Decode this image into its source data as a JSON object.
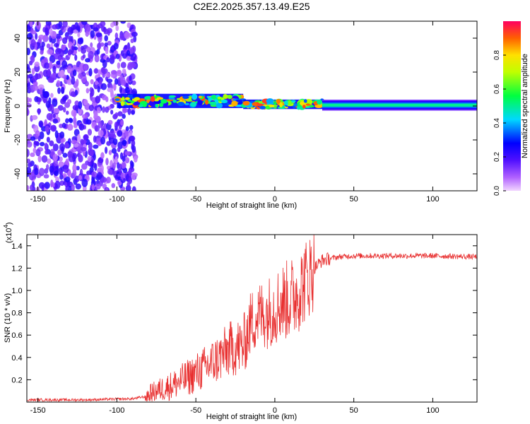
{
  "title": "C2E2.2025.357.13.49.E25",
  "chart_data": [
    {
      "id": "spectrogram",
      "type": "heatmap",
      "xlabel": "Height of straight line (km)",
      "ylabel": "Frequency (Hz)",
      "xlim": [
        -157,
        128
      ],
      "ylim": [
        -50,
        50
      ],
      "xticks": [
        -150,
        -100,
        -50,
        0,
        50,
        100
      ],
      "yticks": [
        -40,
        -20,
        0,
        20,
        40
      ],
      "xtick_labels": [
        "-150",
        "-100",
        "-50",
        "0",
        "50",
        "100"
      ],
      "ytick_labels": [
        "-40",
        "-20",
        "0",
        "20",
        "40"
      ],
      "colorbar": {
        "label": "Normalized spectral amplitude",
        "range": [
          0,
          1
        ],
        "ticks": [
          0.0,
          0.2,
          0.4,
          0.6,
          0.8
        ],
        "tick_labels": [
          "0.0",
          "0.2",
          "0.4",
          "0.6",
          "0.8"
        ]
      },
      "regions": [
        {
          "name": "noise",
          "x": [
            -157,
            -88
          ],
          "freq_spread_hz": 50,
          "amplitude": [
            0.05,
            0.25
          ]
        },
        {
          "name": "scattered-band",
          "x": [
            -100,
            -20
          ],
          "center_hz": 3,
          "width_hz": 6,
          "amplitude": [
            0.2,
            0.95
          ]
        },
        {
          "name": "transition-band",
          "x": [
            -20,
            30
          ],
          "center_hz": 1,
          "width_hz": 4,
          "amplitude": [
            0.3,
            0.95
          ]
        },
        {
          "name": "steady-band",
          "x": [
            30,
            128
          ],
          "center_hz": 0.5,
          "width_hz": 3,
          "amplitude": [
            0.5,
            0.6
          ]
        }
      ]
    },
    {
      "id": "snr",
      "type": "line",
      "xlabel": "Height of straight line (km)",
      "ylabel": "SNR (10 * v/v)",
      "multiplier_label": "(x10",
      "multiplier_exp": "4",
      "multiplier_close": ")",
      "xlim": [
        -157,
        128
      ],
      "ylim": [
        0,
        1.5
      ],
      "xticks": [
        -150,
        -100,
        -50,
        0,
        50,
        100
      ],
      "yticks": [
        0.2,
        0.4,
        0.6,
        0.8,
        1.0,
        1.2,
        1.4
      ],
      "xtick_labels": [
        "-150",
        "-100",
        "-50",
        "0",
        "50",
        "100"
      ],
      "ytick_labels": [
        "0.2",
        "0.4",
        "0.6",
        "0.8",
        "1.0",
        "1.2",
        "1.4"
      ],
      "color": "#e83030",
      "series": [
        {
          "name": "SNR",
          "x": [
            -157,
            -120,
            -90,
            -82,
            -75,
            -65,
            -55,
            -45,
            -35,
            -28,
            -20,
            -15,
            -10,
            -5,
            0,
            5,
            10,
            12,
            15,
            20,
            25,
            30,
            40,
            50,
            80,
            100,
            128
          ],
          "y": [
            0.02,
            0.02,
            0.03,
            0.05,
            0.1,
            0.15,
            0.22,
            0.3,
            0.4,
            0.48,
            0.5,
            0.72,
            0.78,
            0.8,
            0.85,
            0.9,
            0.92,
            0.95,
            1.0,
            1.1,
            1.2,
            1.27,
            1.3,
            1.31,
            1.31,
            1.31,
            1.3
          ]
        }
      ]
    }
  ]
}
